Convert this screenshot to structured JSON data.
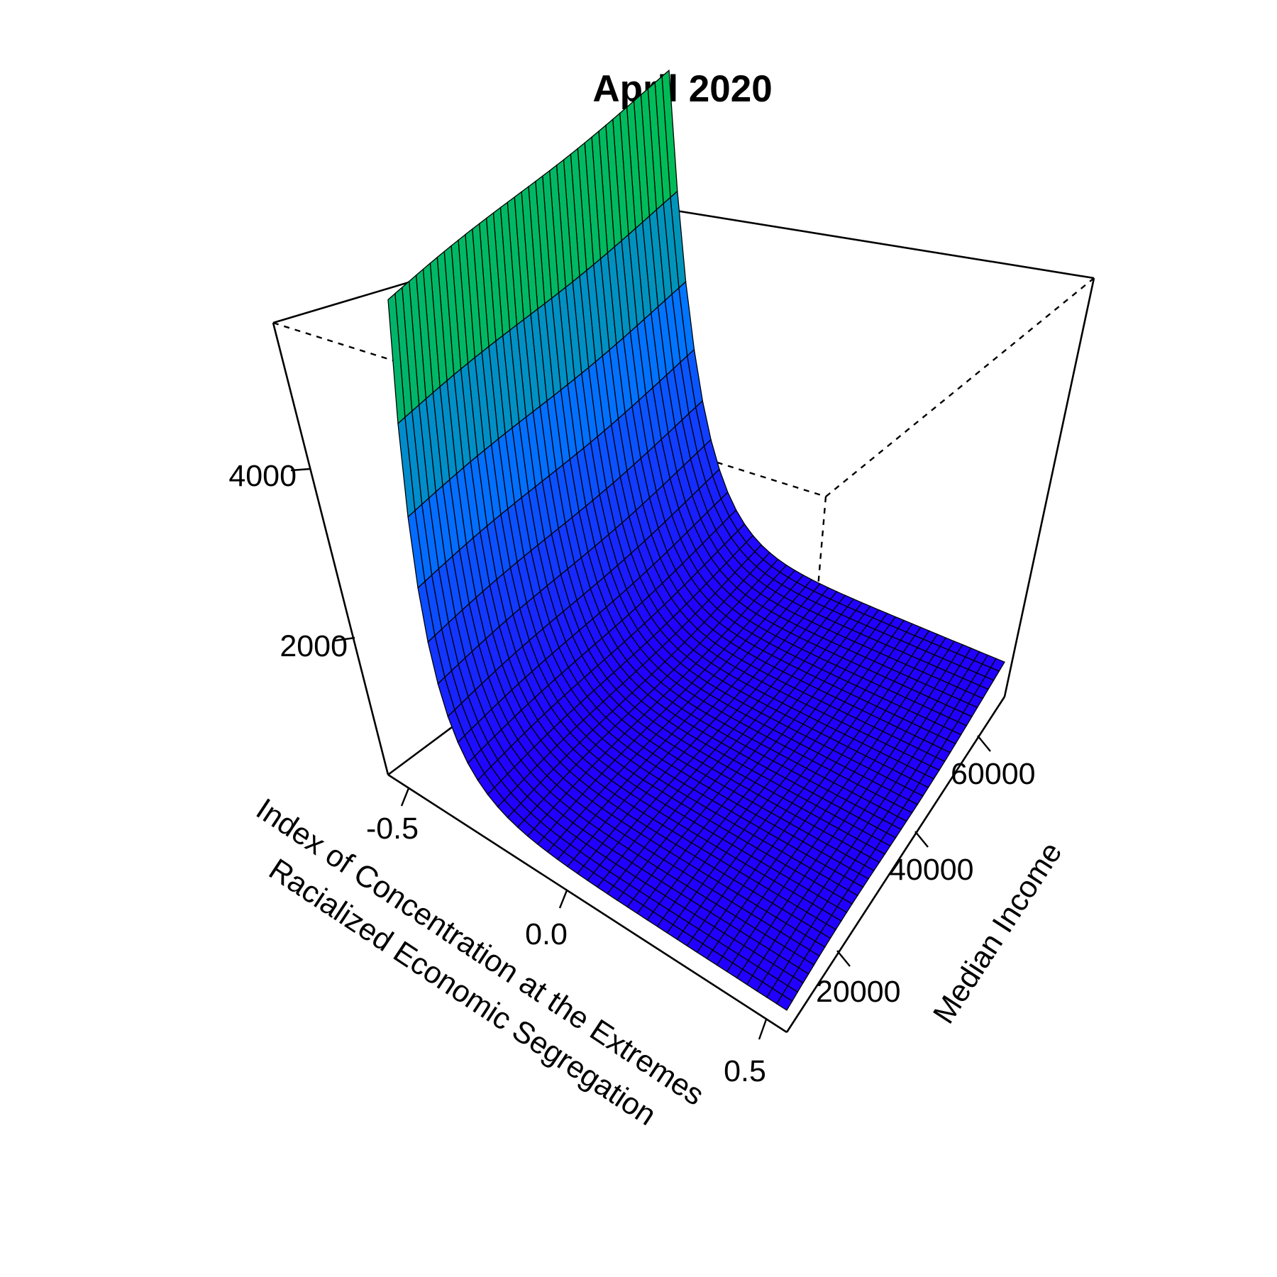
{
  "chart_data": {
    "type": "surface3d",
    "title": "April 2020",
    "x_axis": {
      "label_line1": "Index of Concentration at the Extremes",
      "label_line2": "Racialized Economic Segregation",
      "ticks": [
        -0.5,
        0.0,
        0.5
      ],
      "tick_labels": [
        "-0.5",
        "0.0",
        "0.5"
      ],
      "range": [
        -0.62,
        0.58
      ]
    },
    "y_axis": {
      "label": "Median Income",
      "ticks": [
        20000,
        40000,
        60000
      ],
      "tick_labels": [
        "20000",
        "40000",
        "60000"
      ],
      "range": [
        10000,
        68000
      ]
    },
    "z_axis": {
      "label": "",
      "ticks": [
        2000,
        4000
      ],
      "tick_labels": [
        "2000",
        "4000"
      ],
      "range": [
        0,
        5400
      ]
    },
    "surface": {
      "description_free": true,
      "grid_x": 41,
      "grid_y": 41,
      "peak_value": 5400,
      "min_value": 520,
      "decay_rate": 10,
      "floor_value": 250,
      "floor_slope": 210,
      "income_wave": 30
    },
    "colors": {
      "low": "#2200ff",
      "mid": "#0077ff",
      "high": "#00cc33",
      "box": "#000000"
    },
    "box_dashed_back_edges": true,
    "grid": false
  }
}
